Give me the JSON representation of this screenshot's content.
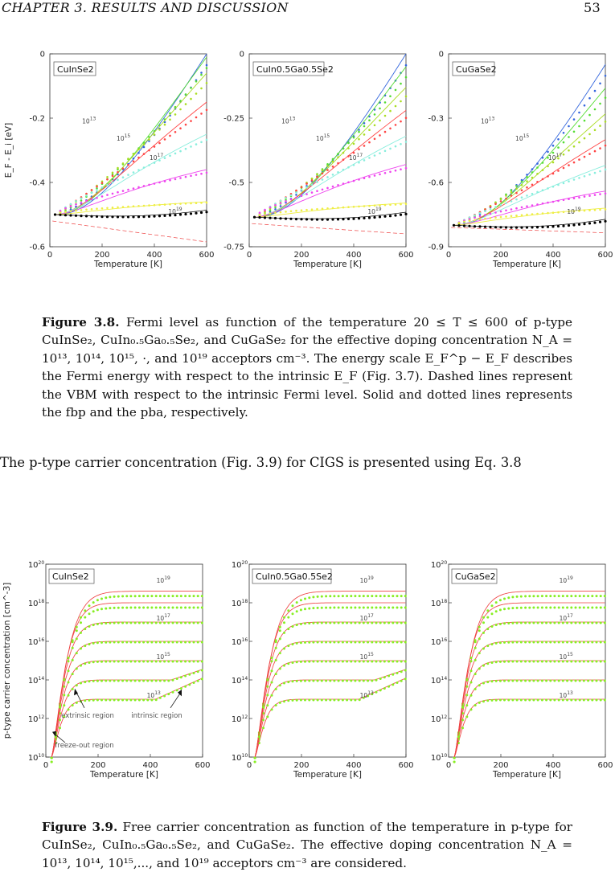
{
  "header": {
    "chapter": "CHAPTER 3.  RESULTS AND DISCUSSION",
    "page": "53"
  },
  "fig38": {
    "caption_label": "Figure 3.8.",
    "caption_text": "Fermi level as function of the temperature 20 ≤ T ≤ 600 of p-type CuInSe₂, CuIn₀.₅Ga₀.₅Se₂, and CuGaSe₂ for the effective doping concentration N_A = 10¹³, 10¹⁴, 10¹⁵, ·, and 10¹⁹ acceptors cm⁻³. The energy scale E_F^p − E_F describes the Fermi energy with respect to the intrinsic E_F (Fig. 3.7). Dashed lines represent the VBM with respect to the intrinsic Fermi level. Solid and dotted lines represents the fbp and the pba, respectively."
  },
  "body_text": "The p-type carrier concentration (Fig. 3.9) for CIGS is presented using Eq. 3.8",
  "fig39": {
    "caption_label": "Figure 3.9.",
    "caption_text": "Free carrier concentration as function of the temperature in p-type for CuInSe₂, CuIn₀.₅Ga₀.₅Se₂, and CuGaSe₂. The effective doping concentration N_A = 10¹³, 10¹⁴, 10¹⁵,..., and 10¹⁹ acceptors cm⁻³ are considered."
  },
  "chart_data": [
    {
      "type": "line",
      "group": "fermi",
      "label": "CuInSe2",
      "xlabel": "Temperature  [K]",
      "ylabel": "E_F - E_i  [eV]",
      "xlim": [
        0,
        600
      ],
      "ylim": [
        -0.6,
        0
      ],
      "xticks": [
        0,
        200,
        400,
        600
      ],
      "yticks": [
        0,
        -0.2,
        -0.4,
        -0.6
      ],
      "ytick_labels": [
        "0",
        "-0.2",
        "-0.4",
        "-0.6"
      ],
      "curve_labels": [
        "10^13",
        "10^15",
        "10^17",
        "10^19"
      ],
      "start": -0.5,
      "end_solid": [
        0,
        -0.01,
        -0.06,
        -0.15,
        -0.25,
        -0.36,
        -0.46
      ],
      "vbm": [
        -0.52,
        -0.585
      ]
    },
    {
      "type": "line",
      "group": "fermi",
      "label": "CuIn0.5Ga0.5Se2",
      "xlabel": "Temperature  [K]",
      "ylabel": "",
      "xlim": [
        0,
        600
      ],
      "ylim": [
        -0.75,
        0
      ],
      "xticks": [
        0,
        200,
        400,
        600
      ],
      "yticks": [
        0,
        -0.25,
        -0.5,
        -0.75
      ],
      "ytick_labels": [
        "0",
        "-0.25",
        "-0.5",
        "-0.75"
      ],
      "curve_labels": [
        "10^13",
        "10^15",
        "10^17",
        "10^19"
      ],
      "start": -0.635,
      "end_solid": [
        0,
        -0.05,
        -0.13,
        -0.22,
        -0.32,
        -0.43,
        -0.58
      ],
      "vbm": [
        -0.66,
        -0.7
      ]
    },
    {
      "type": "line",
      "group": "fermi",
      "label": "CuGaSe2",
      "xlabel": "Temperature  [K]",
      "ylabel": "",
      "xlim": [
        0,
        600
      ],
      "ylim": [
        -0.9,
        0
      ],
      "xticks": [
        0,
        200,
        400,
        600
      ],
      "yticks": [
        0,
        -0.3,
        -0.6,
        -0.9
      ],
      "ytick_labels": [
        "0",
        "-0.3",
        "-0.6",
        "-0.9"
      ],
      "curve_labels": [
        "10^13",
        "10^15",
        "10^17",
        "10^19"
      ],
      "start": -0.8,
      "end_solid": [
        -0.05,
        -0.16,
        -0.28,
        -0.4,
        -0.52,
        -0.64,
        -0.72
      ],
      "vbm": [
        -0.81,
        -0.835
      ]
    },
    {
      "type": "line",
      "group": "carrier",
      "label": "CuInSe2",
      "xlabel": "Temperature [K]",
      "ylabel": "p-type carrier concentration [cm^-3]",
      "xlim": [
        0,
        600
      ],
      "ylim_log10": [
        10,
        20
      ],
      "xticks": [
        0,
        200,
        400,
        600
      ],
      "yticks_log10": [
        10,
        12,
        14,
        16,
        18,
        20
      ],
      "curve_labels": [
        "10^19",
        "10^17",
        "10^15",
        "10^13"
      ],
      "annotations": [
        "extrinsic region",
        "intrinsic region",
        "freeze-out region"
      ],
      "plateaus_log10": [
        13,
        14,
        15,
        16,
        17,
        18,
        18.6
      ],
      "intrinsic_rise": true
    },
    {
      "type": "line",
      "group": "carrier",
      "label": "CuIn0.5Ga0.5Se2",
      "xlabel": "Temperature [K]",
      "ylabel": "",
      "xlim": [
        0,
        600
      ],
      "ylim_log10": [
        10,
        20
      ],
      "xticks": [
        0,
        200,
        400,
        600
      ],
      "yticks_log10": [
        10,
        12,
        14,
        16,
        18,
        20
      ],
      "curve_labels": [
        "10^19",
        "10^17",
        "10^15",
        "10^13"
      ],
      "plateaus_log10": [
        13,
        14,
        15,
        16,
        17,
        18,
        18.6
      ],
      "intrinsic_rise": true
    },
    {
      "type": "line",
      "group": "carrier",
      "label": "CuGaSe2",
      "xlabel": "Temperature [K]",
      "ylabel": "",
      "xlim": [
        0,
        600
      ],
      "ylim_log10": [
        10,
        20
      ],
      "xticks": [
        0,
        200,
        400,
        600
      ],
      "yticks_log10": [
        10,
        12,
        14,
        16,
        18,
        20
      ],
      "curve_labels": [
        "10^19",
        "10^17",
        "10^15",
        "10^13"
      ],
      "plateaus_log10": [
        13,
        14,
        15,
        16,
        17,
        18,
        18.6
      ],
      "intrinsic_rise": false
    }
  ],
  "colors": {
    "fermi_series": [
      "#3366dd",
      "#55dd33",
      "#aadd22",
      "#ff4444",
      "#88eedd",
      "#ee44ee",
      "#eeee44",
      "#000000"
    ],
    "carrier_solid": "#ee4444",
    "carrier_dots": "#88ee22",
    "vbm": "#ee4444"
  }
}
